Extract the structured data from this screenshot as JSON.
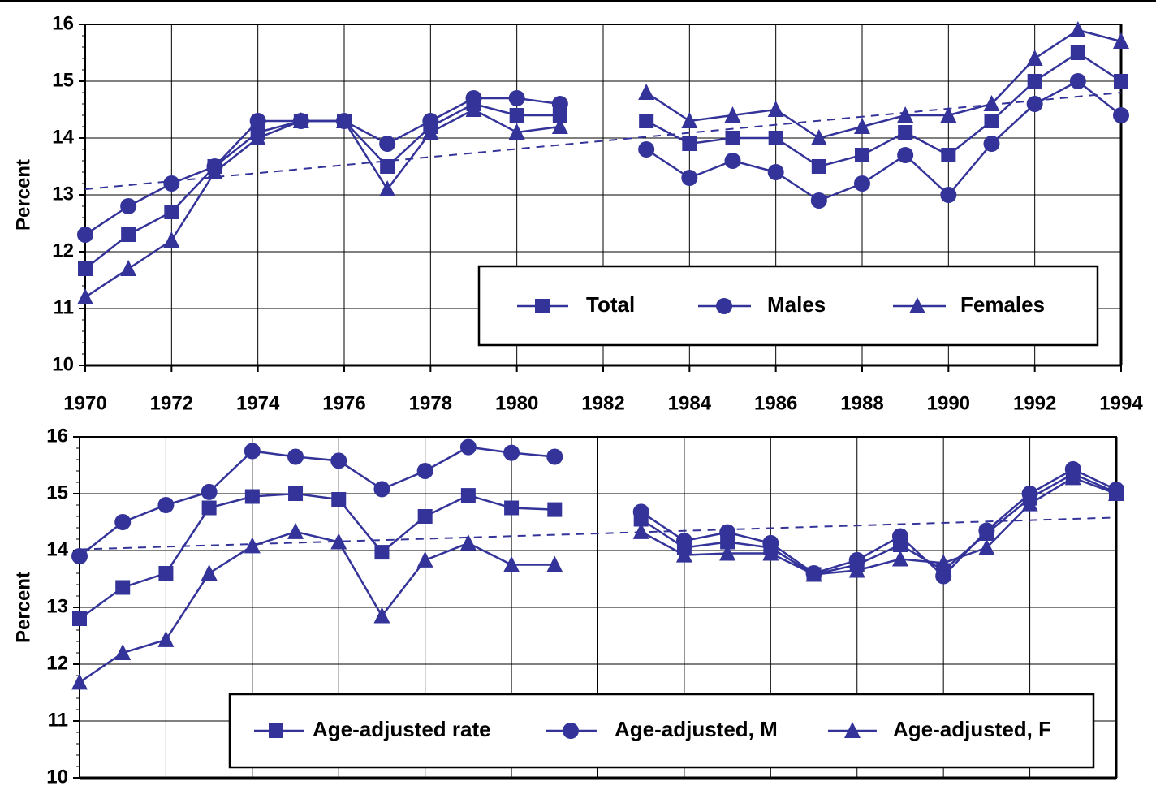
{
  "chart_data": [
    {
      "type": "line",
      "ylabel": "Percent",
      "x": [
        1970,
        1971,
        1972,
        1973,
        1974,
        1975,
        1976,
        1977,
        1978,
        1979,
        1980,
        1981,
        1982,
        1983,
        1984,
        1985,
        1986,
        1987,
        1988,
        1989,
        1990,
        1991,
        1992,
        1993,
        1994
      ],
      "xlim": [
        1970,
        1994
      ],
      "xticks": [
        1970,
        1972,
        1974,
        1976,
        1978,
        1980,
        1982,
        1984,
        1986,
        1988,
        1990,
        1992,
        1994
      ],
      "ylim": [
        10,
        16
      ],
      "yticks": [
        10,
        11,
        12,
        13,
        14,
        15,
        16
      ],
      "grid": true,
      "series": [
        {
          "name": "Total",
          "color": "#333399",
          "marker": "square",
          "values": [
            11.7,
            12.3,
            12.7,
            13.5,
            14.1,
            14.3,
            14.3,
            13.5,
            14.2,
            14.6,
            14.4,
            14.4,
            null,
            14.3,
            13.9,
            14.0,
            14.0,
            13.5,
            13.7,
            14.1,
            13.7,
            14.3,
            15.0,
            15.5,
            15.0
          ]
        },
        {
          "name": "Males",
          "color": "#333399",
          "marker": "circle",
          "values": [
            12.3,
            12.8,
            13.2,
            13.5,
            14.3,
            14.3,
            14.3,
            13.9,
            14.3,
            14.7,
            14.7,
            14.6,
            null,
            13.8,
            13.3,
            13.6,
            13.4,
            12.9,
            13.2,
            13.7,
            13.0,
            13.9,
            14.6,
            15.0,
            14.4
          ]
        },
        {
          "name": "Females",
          "color": "#333399",
          "marker": "triangle",
          "values": [
            11.2,
            11.7,
            12.2,
            13.4,
            14.0,
            14.3,
            14.3,
            13.1,
            14.1,
            14.5,
            14.1,
            14.2,
            null,
            14.8,
            14.3,
            14.4,
            14.5,
            14.0,
            14.2,
            14.4,
            14.4,
            14.6,
            15.4,
            15.9,
            15.7
          ]
        }
      ],
      "trend": {
        "x": [
          1970,
          1994
        ],
        "values": [
          13.1,
          14.8
        ],
        "color": "#333399"
      }
    },
    {
      "type": "line",
      "ylabel": "Percent",
      "x": [
        1970,
        1971,
        1972,
        1973,
        1974,
        1975,
        1976,
        1977,
        1978,
        1979,
        1980,
        1981,
        1982,
        1983,
        1984,
        1985,
        1986,
        1987,
        1988,
        1989,
        1990,
        1991,
        1992,
        1993,
        1994
      ],
      "xlim": [
        1970,
        1994
      ],
      "xgrid": [
        1970,
        1972,
        1974,
        1976,
        1978,
        1980,
        1982,
        1984,
        1986,
        1988,
        1990,
        1992,
        1994
      ],
      "ylim": [
        10,
        16
      ],
      "yticks": [
        10,
        11,
        12,
        13,
        14,
        15,
        16
      ],
      "grid": true,
      "series": [
        {
          "name": "Age-adjusted rate",
          "color": "#333399",
          "marker": "square",
          "values": [
            12.8,
            13.35,
            13.6,
            14.75,
            14.95,
            15.0,
            14.9,
            13.97,
            14.6,
            14.97,
            14.75,
            14.72,
            null,
            14.55,
            14.05,
            14.15,
            14.05,
            13.58,
            13.75,
            14.1,
            13.65,
            14.3,
            14.92,
            15.35,
            15.02
          ]
        },
        {
          "name": "Age-adjusted, M",
          "color": "#333399",
          "marker": "circle",
          "values": [
            13.9,
            14.5,
            14.8,
            15.03,
            15.75,
            15.65,
            15.58,
            15.08,
            15.4,
            15.82,
            15.72,
            15.65,
            null,
            14.68,
            14.17,
            14.32,
            14.13,
            13.6,
            13.83,
            14.25,
            13.55,
            14.35,
            15.0,
            15.43,
            15.07
          ]
        },
        {
          "name": "Age-adjusted, F",
          "color": "#333399",
          "marker": "triangle",
          "values": [
            11.68,
            12.2,
            12.43,
            13.6,
            14.08,
            14.33,
            14.15,
            12.85,
            13.83,
            14.13,
            13.75,
            13.75,
            null,
            14.33,
            13.92,
            13.95,
            13.95,
            13.58,
            13.65,
            13.85,
            13.78,
            14.05,
            14.82,
            15.28,
            15.0
          ]
        }
      ],
      "trend": {
        "x": [
          1970,
          1994
        ],
        "values": [
          14.02,
          14.58
        ],
        "color": "#333399"
      }
    }
  ]
}
